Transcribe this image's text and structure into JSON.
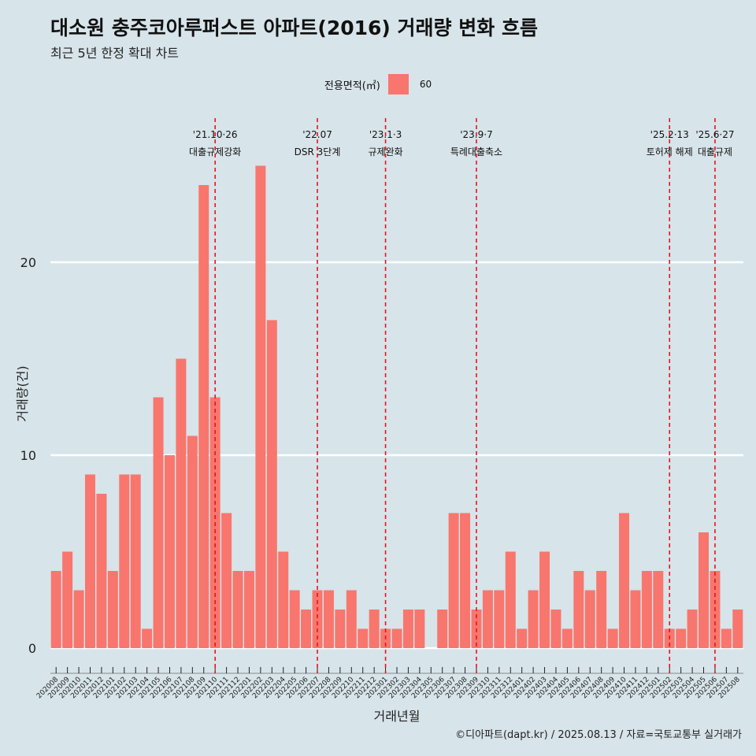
{
  "title": "대소원 충주코아루퍼스트 아파트(2016) 거래량 변화 흐름",
  "subtitle": "최근 5년 한정 확대 차트",
  "legend": {
    "title": "전용면적(㎡)",
    "label": "60",
    "color": "#f8766d"
  },
  "caption": "©디아파트(dapt.kr) / 2025.08.13 / 자료=국토교통부 실거래가",
  "chart_data": {
    "type": "bar",
    "xlabel": "거래년월",
    "ylabel": "거래량(건)",
    "ylim": [
      0,
      25
    ],
    "yticks": [
      0,
      10,
      20
    ],
    "bar_color": "#f8766d",
    "grid": true,
    "categories": [
      "202008",
      "202009",
      "202010",
      "202011",
      "202012",
      "202101",
      "202102",
      "202103",
      "202104",
      "202105",
      "202106",
      "202107",
      "202108",
      "202109",
      "202110",
      "202111",
      "202112",
      "202201",
      "202202",
      "202203",
      "202204",
      "202205",
      "202206",
      "202207",
      "202208",
      "202209",
      "202210",
      "202211",
      "202212",
      "202301",
      "202302",
      "202303",
      "202304",
      "202305",
      "202306",
      "202307",
      "202308",
      "202309",
      "202310",
      "202311",
      "202312",
      "202401",
      "202402",
      "202403",
      "202404",
      "202405",
      "202406",
      "202407",
      "202408",
      "202409",
      "202410",
      "202411",
      "202412",
      "202501",
      "202502",
      "202503",
      "202504",
      "202505",
      "202506",
      "202507",
      "202508"
    ],
    "values": [
      4,
      5,
      3,
      9,
      8,
      4,
      9,
      9,
      1,
      13,
      10,
      15,
      11,
      24,
      13,
      7,
      4,
      4,
      25,
      17,
      5,
      3,
      2,
      3,
      3,
      2,
      3,
      1,
      2,
      1,
      1,
      2,
      2,
      0,
      2,
      7,
      7,
      2,
      3,
      3,
      5,
      1,
      3,
      5,
      2,
      1,
      4,
      3,
      4,
      1,
      7,
      3,
      4,
      4,
      1,
      1,
      2,
      6,
      4,
      1,
      2
    ],
    "events": [
      {
        "category": "202110",
        "date": "'21.10·26",
        "label": "대출규제강화"
      },
      {
        "category": "202207",
        "date": "'22.07",
        "label": "DSR 3단계"
      },
      {
        "category": "202301",
        "date": "'23.1·3",
        "label": "규제완화"
      },
      {
        "category": "202309",
        "date": "'23.9·7",
        "label": "특례대출축소"
      },
      {
        "category": "202502",
        "date": "'25.2·13",
        "label": "토허제 해제"
      },
      {
        "category": "202506",
        "date": "'25.6·27",
        "label": "대출규제"
      }
    ]
  }
}
